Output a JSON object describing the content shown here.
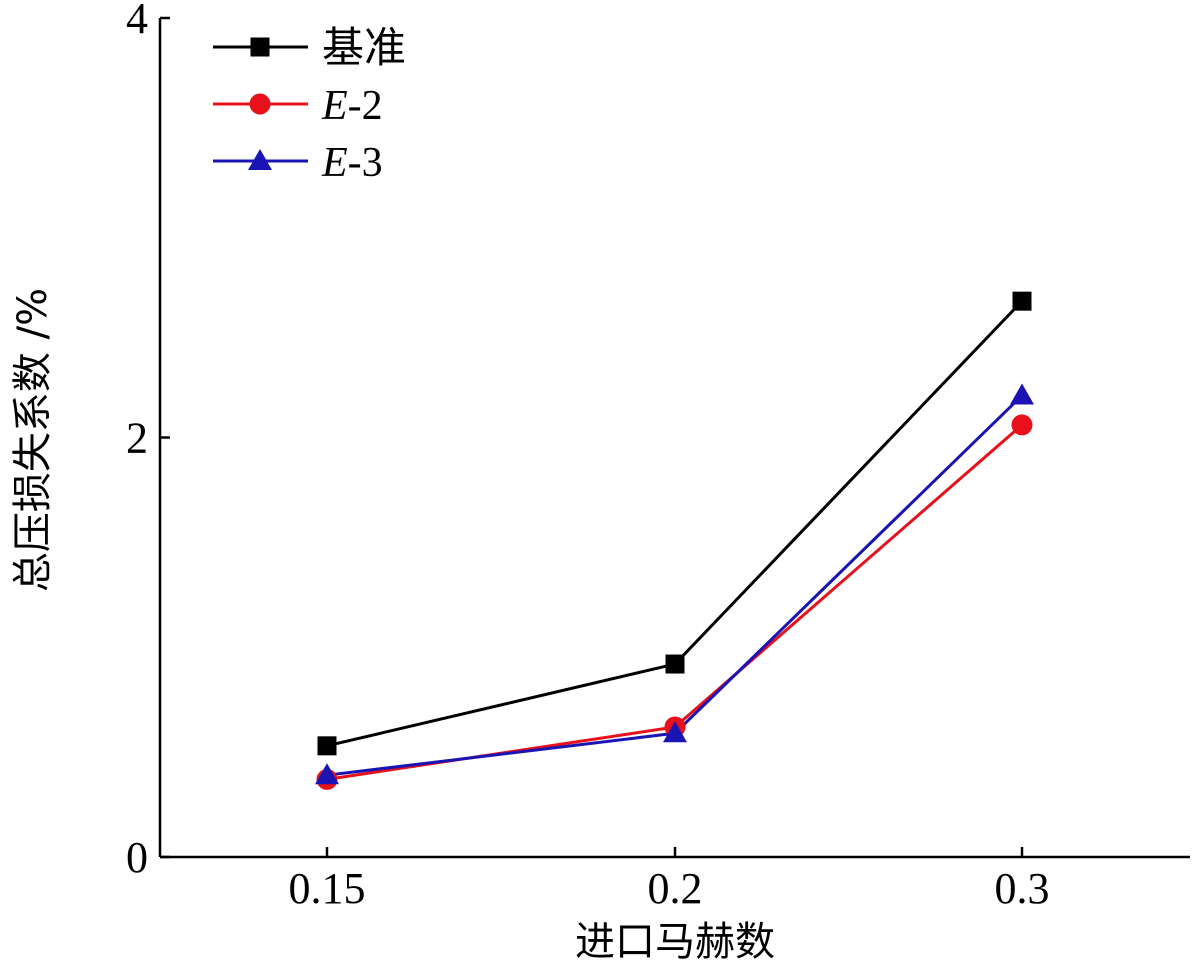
{
  "chart_data": {
    "type": "line",
    "xlabel": "进口马赫数",
    "ylabel": "总压损失系数 /%",
    "categories": [
      "0.15",
      "0.2",
      "0.3"
    ],
    "ylim": [
      0,
      4
    ],
    "yticks": [
      "0",
      "2",
      "4"
    ],
    "legend_position": "top-left",
    "series": [
      {
        "name": "基准",
        "name_parts": [
          {
            "text": "基准",
            "style": "cjk"
          }
        ],
        "values": [
          0.53,
          0.92,
          2.65
        ],
        "color": "#000000",
        "marker": "square"
      },
      {
        "name": "E-2",
        "name_parts": [
          {
            "text": "E",
            "style": "italic"
          },
          {
            "text": "-2",
            "style": "normal"
          }
        ],
        "values": [
          0.37,
          0.62,
          2.06
        ],
        "color": "#e8101a",
        "marker": "circle"
      },
      {
        "name": "E-3",
        "name_parts": [
          {
            "text": "E",
            "style": "italic"
          },
          {
            "text": "-3",
            "style": "normal"
          }
        ],
        "values": [
          0.39,
          0.59,
          2.2
        ],
        "color": "#1a14b4",
        "marker": "triangle"
      }
    ]
  }
}
